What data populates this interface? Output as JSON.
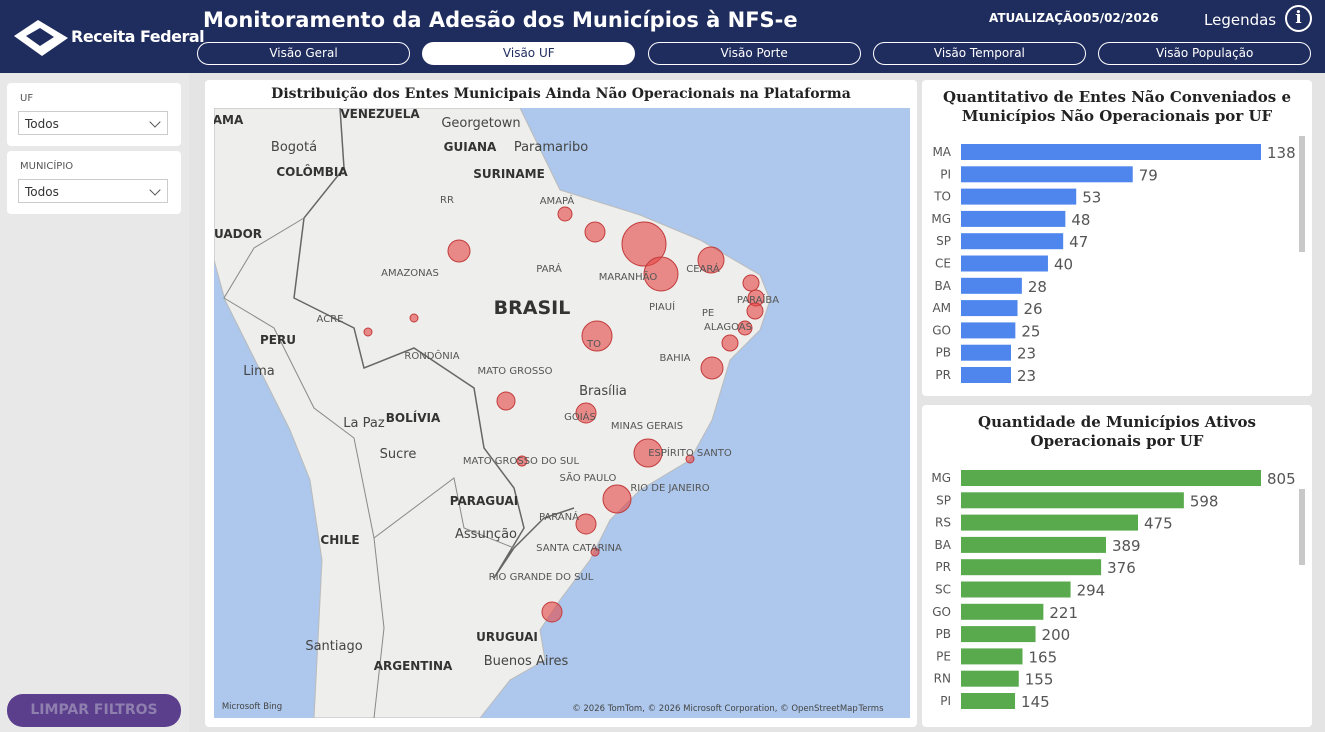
{
  "header": {
    "logo": "Receita Federal",
    "title": "Monitoramento da Adesão dos Municípios à NFS-e",
    "update_label": "ATUALIZAÇÃO:",
    "update_date": "05/02/2026",
    "legend": "Legendas",
    "info": "i"
  },
  "tabs": [
    "Visão Geral",
    "Visão UF",
    "Visão Porte",
    "Visão Temporal",
    "Visão População"
  ],
  "filters": [
    {
      "label": "UF",
      "value": "Todos"
    },
    {
      "label": "MUNICÍPIO",
      "value": "Todos"
    }
  ],
  "clear_button": "LIMPAR FILTROS",
  "map": {
    "title": "Distribuição dos Entes Municipais Ainda Não Operacionais na Plataforma",
    "labels": [
      "AMA",
      "VENEZUELA",
      "Georgetown",
      "Paramaribo",
      "Bogotá",
      "GUIANA",
      "COLÔMBIA",
      "SURINAME",
      "RR",
      "AMAPÁ",
      "UADOR",
      "AMAZONAS",
      "PARÁ",
      "MARANHÃO",
      "CEARÁ",
      "BRASIL",
      "ACRE",
      "PIAUÍ",
      "PE",
      "PARAÍBA",
      "ALAGOAS",
      "PERU",
      "RONDÔNIA",
      "TO",
      "Lima",
      "MATO GROSSO",
      "BAHIA",
      "Brasília",
      "BOLÍVIA",
      "La Paz",
      "GOIÁS",
      "MINAS GERAIS",
      "Sucre",
      "MATO GROSSO DO SUL",
      "ESPÍRITO SANTO",
      "SÃO PAULO",
      "RIO DE JANEIRO",
      "PARAGUAI",
      "Assunção",
      "PARANÁ",
      "CHILE",
      "SANTA CATARINA",
      "RIO GRANDE DO SUL",
      "Santiago",
      "URUGUAI",
      "ARGENTINA",
      "Buenos Aires",
      "Microsoft Bing",
      "© 2026 TomTom, © 2026 Microsoft Corporation, © OpenStreetMap",
      "Terms"
    ]
  },
  "chart_data": [
    {
      "type": "bar",
      "orientation": "horizontal",
      "title": "Quantitativo de Entes Não Conveniados e Municípios Não Operacionais por UF",
      "categories": [
        "MA",
        "PI",
        "TO",
        "MG",
        "SP",
        "CE",
        "BA",
        "AM",
        "GO",
        "PB",
        "PR"
      ],
      "values": [
        138,
        79,
        53,
        48,
        47,
        40,
        28,
        26,
        25,
        23,
        23
      ],
      "color": "#4f86ee"
    },
    {
      "type": "bar",
      "orientation": "horizontal",
      "title": "Quantidade de Municípios Ativos Operacionais por UF",
      "categories": [
        "MG",
        "SP",
        "RS",
        "BA",
        "PR",
        "SC",
        "GO",
        "PB",
        "PE",
        "RN",
        "PI"
      ],
      "values": [
        805,
        598,
        475,
        389,
        376,
        294,
        221,
        200,
        165,
        155,
        145
      ],
      "color": "#59aa4c"
    }
  ]
}
